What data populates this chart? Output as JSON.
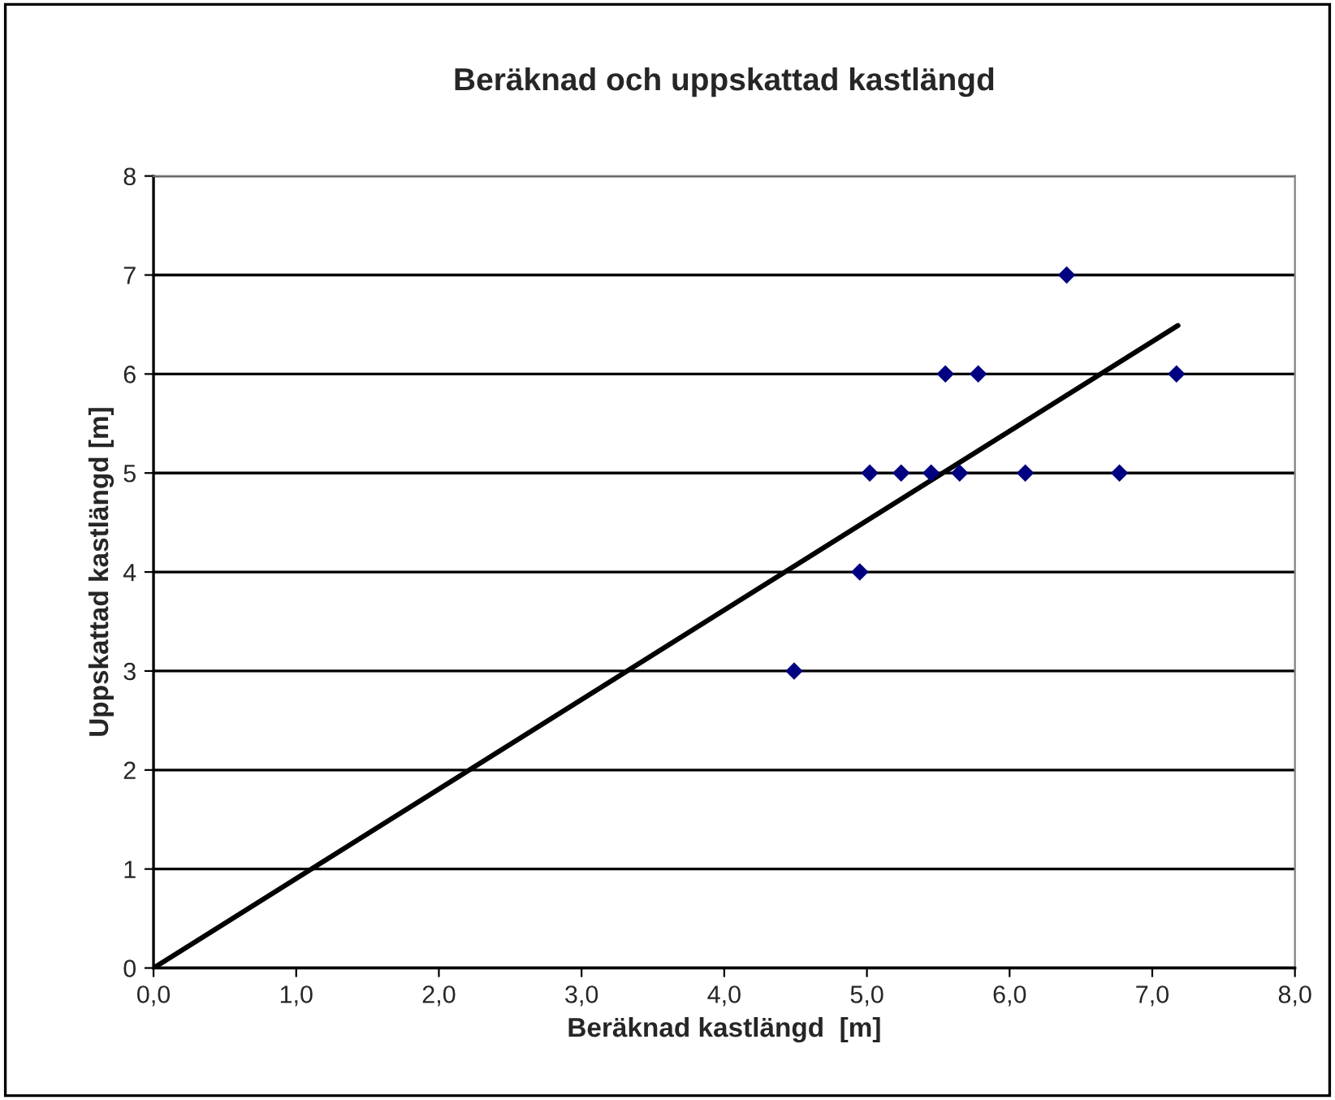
{
  "chart_data": {
    "type": "scatter",
    "title": "Beräknad och uppskattad kastlängd",
    "xlabel": "Beräknad kastlängd  [m]",
    "ylabel": "Uppskattad kastlängd [m]",
    "series": [
      {
        "color": "#000080",
        "marker": "diamond",
        "x": [
          4.49,
          4.95,
          5.02,
          5.24,
          5.45,
          5.65,
          6.11,
          6.77,
          5.55,
          5.78,
          7.17,
          6.4
        ],
        "values": [
          3,
          4,
          5,
          5,
          5,
          5,
          5,
          5,
          6,
          6,
          6,
          7
        ]
      },
      {
        "type": "line",
        "color": "#000000",
        "marker": "none",
        "line_style": "solid",
        "x": [
          0,
          7.18
        ],
        "values": [
          0,
          6.49
        ]
      }
    ],
    "xlim": [
      0,
      8
    ],
    "ylim": [
      0,
      8
    ],
    "xticks": [
      {
        "value": 0,
        "label": "0,0"
      },
      {
        "value": 1,
        "label": "1,0"
      },
      {
        "value": 2,
        "label": "2,0"
      },
      {
        "value": 3,
        "label": "3,0"
      },
      {
        "value": 4,
        "label": "4,0"
      },
      {
        "value": 5,
        "label": "5,0"
      },
      {
        "value": 6,
        "label": "6,0"
      },
      {
        "value": 7,
        "label": "7,0"
      },
      {
        "value": 8,
        "label": "8,0"
      }
    ],
    "yticks": [
      0,
      1,
      2,
      3,
      4,
      5,
      6,
      7,
      8
    ],
    "grid": "y",
    "legend": false
  }
}
